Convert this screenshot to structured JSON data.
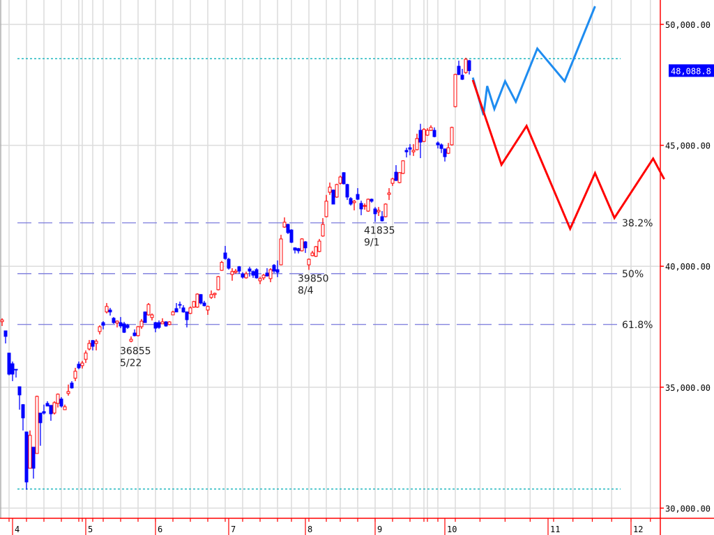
{
  "chart_data": {
    "type": "candlestick",
    "colors": {
      "up": "#ff0000",
      "down": "#0000ff",
      "axis": "#ff0000",
      "grid": "#dcdcdc",
      "fib": "#7878dc",
      "level": "#20b8c0",
      "price_box": "#0000ff"
    },
    "y_axis": {
      "ylim": [
        29580,
        51008
      ],
      "ticks": [
        50000,
        45000,
        40000,
        35000,
        30000
      ],
      "tick_labels": [
        "50,000.00",
        "45,000.00",
        "40,000.00",
        "35,000.00",
        "30,000.00"
      ]
    },
    "x_axis": {
      "months": [
        {
          "label": "4",
          "date": "4/1"
        },
        {
          "label": "5",
          "date": "5/1"
        },
        {
          "label": "6",
          "date": "6/2"
        },
        {
          "label": "7",
          "date": "7/1"
        },
        {
          "label": "8",
          "date": "8/1"
        },
        {
          "label": "9",
          "date": "9/1"
        },
        {
          "label": "10",
          "date": "10/1"
        },
        {
          "label": "11",
          "date": "11/1"
        },
        {
          "label": "12",
          "date": "12/1"
        }
      ]
    },
    "last_price": {
      "value": 48088.8,
      "label": "48,088.8"
    },
    "candles_format": [
      "date",
      "open",
      "high",
      "low",
      "close"
    ],
    "candles": [
      [
        "3/27",
        37710,
        37850,
        37530,
        37780
      ],
      [
        "3/28",
        37330,
        37330,
        36810,
        37100
      ],
      [
        "3/31",
        36410,
        36410,
        35490,
        35540
      ],
      [
        "4/1",
        35970,
        36060,
        35250,
        35540
      ],
      [
        "4/2",
        35740,
        35740,
        35400,
        35720
      ],
      [
        "4/3",
        35020,
        35020,
        34070,
        34680
      ],
      [
        "4/4",
        34280,
        34300,
        33210,
        33730
      ],
      [
        "4/7",
        33150,
        33150,
        30760,
        31080
      ],
      [
        "4/8",
        31650,
        33210,
        31650,
        33010
      ],
      [
        "4/9",
        32520,
        32520,
        31220,
        31650
      ],
      [
        "4/10",
        32260,
        34650,
        32260,
        34620
      ],
      [
        "4/11",
        33930,
        33930,
        32580,
        33530
      ],
      [
        "4/14",
        33990,
        34280,
        33870,
        33930
      ],
      [
        "4/15",
        34330,
        34420,
        34220,
        34220
      ],
      [
        "4/16",
        34250,
        34250,
        33610,
        33900
      ],
      [
        "4/17",
        33930,
        34420,
        33870,
        34360
      ],
      [
        "4/18",
        34330,
        34740,
        34160,
        34710
      ],
      [
        "4/21",
        34510,
        34590,
        34160,
        34220
      ],
      [
        "4/22",
        34070,
        34280,
        34070,
        34190
      ],
      [
        "4/23",
        34740,
        35110,
        34650,
        34820
      ],
      [
        "4/24",
        35170,
        35250,
        34940,
        34970
      ],
      [
        "4/25",
        35370,
        35800,
        35250,
        35660
      ],
      [
        "4/28",
        35950,
        36060,
        35740,
        35800
      ],
      [
        "4/30",
        35890,
        36090,
        35770,
        36000
      ],
      [
        "5/1",
        36150,
        36520,
        36000,
        36410
      ],
      [
        "5/2",
        36580,
        36950,
        36520,
        36810
      ],
      [
        "5/7",
        36930,
        36950,
        36520,
        36690
      ],
      [
        "5/8",
        36810,
        36980,
        36520,
        36900
      ],
      [
        "5/9",
        37300,
        37560,
        37180,
        37500
      ],
      [
        "5/12",
        37670,
        37730,
        37390,
        37560
      ],
      [
        "5/13",
        38110,
        38480,
        38050,
        38340
      ],
      [
        "5/14",
        38190,
        38280,
        37960,
        38110
      ],
      [
        "5/15",
        37850,
        37900,
        37620,
        37670
      ],
      [
        "5/16",
        37650,
        37760,
        37470,
        37730
      ],
      [
        "5/19",
        37670,
        37900,
        37440,
        37530
      ],
      [
        "5/20",
        37620,
        37700,
        37240,
        37270
      ],
      [
        "5/21",
        37560,
        37620,
        37410,
        37470
      ],
      [
        "5/22",
        36900,
        37100,
        36855,
        36980
      ],
      [
        "5/23",
        37240,
        37390,
        37100,
        37130
      ],
      [
        "5/26",
        37130,
        37530,
        37100,
        37500
      ],
      [
        "5/27",
        37500,
        37820,
        37410,
        37730
      ],
      [
        "5/28",
        38110,
        38130,
        37670,
        37670
      ],
      [
        "5/29",
        37990,
        38480,
        37960,
        38420
      ],
      [
        "5/30",
        37880,
        38050,
        37760,
        37990
      ],
      [
        "6/2",
        37670,
        37700,
        37270,
        37440
      ],
      [
        "6/3",
        37670,
        37760,
        37410,
        37470
      ],
      [
        "6/4",
        37620,
        37850,
        37620,
        37700
      ],
      [
        "6/5",
        37700,
        37730,
        37500,
        37530
      ],
      [
        "6/6",
        37590,
        37730,
        37560,
        37700
      ],
      [
        "6/9",
        37990,
        38160,
        37990,
        38110
      ],
      [
        "6/10",
        38250,
        38480,
        38110,
        38110
      ],
      [
        "6/11",
        38420,
        38540,
        38250,
        38390
      ],
      [
        "6/12",
        38280,
        38390,
        38080,
        38110
      ],
      [
        "6/13",
        38110,
        38130,
        37470,
        37790
      ],
      [
        "6/16",
        38050,
        38340,
        38020,
        38280
      ],
      [
        "6/17",
        38310,
        38570,
        38280,
        38540
      ],
      [
        "6/18",
        38310,
        38880,
        38280,
        38850
      ],
      [
        "6/19",
        38830,
        38850,
        38420,
        38480
      ],
      [
        "6/20",
        38480,
        38570,
        38340,
        38370
      ],
      [
        "6/23",
        38190,
        38370,
        37990,
        38340
      ],
      [
        "6/24",
        38710,
        39000,
        38650,
        38830
      ],
      [
        "6/25",
        38830,
        38910,
        38680,
        38880
      ],
      [
        "6/26",
        39030,
        39600,
        39000,
        39570
      ],
      [
        "6/27",
        39830,
        40220,
        39810,
        40160
      ],
      [
        "6/30",
        40550,
        40840,
        40270,
        40320
      ],
      [
        "7/1",
        40290,
        40350,
        39860,
        39920
      ],
      [
        "7/2",
        39660,
        39920,
        39400,
        39780
      ],
      [
        "7/3",
        39750,
        39890,
        39690,
        39800
      ],
      [
        "7/4",
        39980,
        40010,
        39690,
        39800
      ],
      [
        "7/7",
        39690,
        39750,
        39490,
        39550
      ],
      [
        "7/8",
        39520,
        39780,
        39490,
        39690
      ],
      [
        "7/9",
        39890,
        39980,
        39570,
        39800
      ],
      [
        "7/10",
        39780,
        39830,
        39520,
        39630
      ],
      [
        "7/11",
        39860,
        39920,
        39490,
        39520
      ],
      [
        "7/14",
        39400,
        39570,
        39260,
        39490
      ],
      [
        "7/15",
        39520,
        39690,
        39430,
        39630
      ],
      [
        "7/16",
        39720,
        39920,
        39570,
        39600
      ],
      [
        "7/17",
        39490,
        39920,
        39340,
        39860
      ],
      [
        "7/18",
        40040,
        40090,
        39720,
        39800
      ],
      [
        "7/22",
        39860,
        40240,
        39550,
        39750
      ],
      [
        "7/23",
        40060,
        41300,
        40040,
        41130
      ],
      [
        "7/24",
        41620,
        42020,
        41590,
        41820
      ],
      [
        "7/25",
        41730,
        41760,
        41330,
        41390
      ],
      [
        "7/28",
        41500,
        41530,
        40960,
        40990
      ],
      [
        "7/29",
        40760,
        40780,
        40530,
        40670
      ],
      [
        "7/30",
        40730,
        40760,
        40530,
        40640
      ],
      [
        "7/31",
        40640,
        41160,
        40610,
        41130
      ],
      [
        "8/1",
        41010,
        41040,
        40550,
        40760
      ],
      [
        "8/4",
        40060,
        40320,
        39850,
        40290
      ],
      [
        "8/5",
        40440,
        40640,
        40410,
        40550
      ],
      [
        "8/6",
        40410,
        40840,
        40380,
        40810
      ],
      [
        "8/7",
        40610,
        41130,
        40580,
        41040
      ],
      [
        "8/8",
        41250,
        41990,
        41220,
        41730
      ],
      [
        "8/12",
        42050,
        42950,
        42020,
        42690
      ],
      [
        "8/13",
        43060,
        43460,
        42950,
        43270
      ],
      [
        "8/14",
        43150,
        43170,
        42570,
        42570
      ],
      [
        "8/15",
        42860,
        43410,
        42830,
        43380
      ],
      [
        "8/18",
        43430,
        43750,
        43380,
        43690
      ],
      [
        "8/19",
        43870,
        43890,
        43380,
        43410
      ],
      [
        "8/20",
        43380,
        43410,
        42740,
        42860
      ],
      [
        "8/21",
        42800,
        42860,
        42510,
        42570
      ],
      [
        "8/22",
        42630,
        42740,
        42310,
        42690
      ],
      [
        "8/25",
        42970,
        43230,
        42740,
        42770
      ],
      [
        "8/26",
        42600,
        42710,
        42110,
        42370
      ],
      [
        "8/27",
        42480,
        42600,
        42340,
        42510
      ],
      [
        "8/28",
        42280,
        42800,
        42250,
        42770
      ],
      [
        "8/29",
        42770,
        42800,
        42630,
        42690
      ],
      [
        "9/1",
        42370,
        42450,
        41835,
        42170
      ],
      [
        "9/2",
        42250,
        42450,
        42080,
        42310
      ],
      [
        "9/3",
        42050,
        42280,
        41850,
        41880
      ],
      [
        "9/4",
        42050,
        42600,
        42020,
        42570
      ],
      [
        "9/5",
        42970,
        43230,
        42740,
        43030
      ],
      [
        "9/8",
        43430,
        43660,
        43320,
        43610
      ],
      [
        "9/9",
        43890,
        44180,
        43520,
        43550
      ],
      [
        "9/10",
        43460,
        43890,
        43430,
        43870
      ],
      [
        "9/11",
        43840,
        44380,
        43810,
        44360
      ],
      [
        "9/12",
        44790,
        44900,
        44500,
        44730
      ],
      [
        "9/16",
        44900,
        45050,
        44590,
        44840
      ],
      [
        "9/17",
        44730,
        45050,
        44560,
        44790
      ],
      [
        "9/18",
        44820,
        45480,
        44790,
        45280
      ],
      [
        "9/19",
        45620,
        45890,
        44470,
        45130
      ],
      [
        "9/22",
        45160,
        45710,
        45130,
        45660
      ],
      [
        "9/24",
        45420,
        45710,
        45390,
        45620
      ],
      [
        "9/25",
        45620,
        45830,
        45590,
        45740
      ],
      [
        "9/26",
        45620,
        45740,
        45330,
        45360
      ],
      [
        "9/29",
        45100,
        45160,
        44870,
        45020
      ],
      [
        "9/30",
        45020,
        45080,
        44680,
        44870
      ],
      [
        "10/1",
        44850,
        44870,
        44330,
        44530
      ],
      [
        "10/2",
        44670,
        45100,
        44640,
        44900
      ],
      [
        "10/3",
        45020,
        45770,
        44990,
        45740
      ],
      [
        "10/6",
        46600,
        47960,
        46570,
        47930
      ],
      [
        "10/7",
        48270,
        48500,
        47900,
        47930
      ],
      [
        "10/8",
        47900,
        48160,
        47700,
        47730
      ],
      [
        "10/9",
        48010,
        48620,
        47960,
        48560
      ],
      [
        "10/10",
        48500,
        48530,
        47930,
        48088.8
      ]
    ],
    "annotations": [
      {
        "value": "36855",
        "date": "5/22",
        "price": 36855
      },
      {
        "value": "39850",
        "date": "8/4",
        "price": 39850
      },
      {
        "value": "41835",
        "date": "9/1",
        "price": 41835
      }
    ],
    "horizontal_lines": [
      {
        "value": 48580,
        "style": "dotted"
      },
      {
        "value": 30790,
        "style": "dotted"
      }
    ],
    "fibonacci": [
      {
        "label": "38.2%",
        "value": 41795
      },
      {
        "label": "50%",
        "value": 39695
      },
      {
        "label": "61.8%",
        "value": 37593
      }
    ],
    "projections": [
      {
        "color": "#1e8cf0",
        "points": [
          [
            "10/11",
            47800
          ],
          [
            "10/14",
            46250
          ],
          [
            "10/15",
            47450
          ],
          [
            "10/17",
            46500
          ],
          [
            "10/20",
            47650
          ],
          [
            "10/23",
            46800
          ],
          [
            "10/29",
            49000
          ],
          [
            "11/7",
            47650
          ],
          [
            "11/18",
            50750
          ]
        ]
      },
      {
        "color": "#ff0000",
        "points": [
          [
            "10/11",
            47700
          ],
          [
            "10/19",
            44200
          ],
          [
            "10/26",
            45800
          ],
          [
            "11/9",
            41550
          ],
          [
            "11/18",
            43850
          ],
          [
            "11/25",
            42000
          ],
          [
            "12/9",
            44450
          ],
          [
            "12/13",
            43600
          ]
        ]
      }
    ]
  }
}
